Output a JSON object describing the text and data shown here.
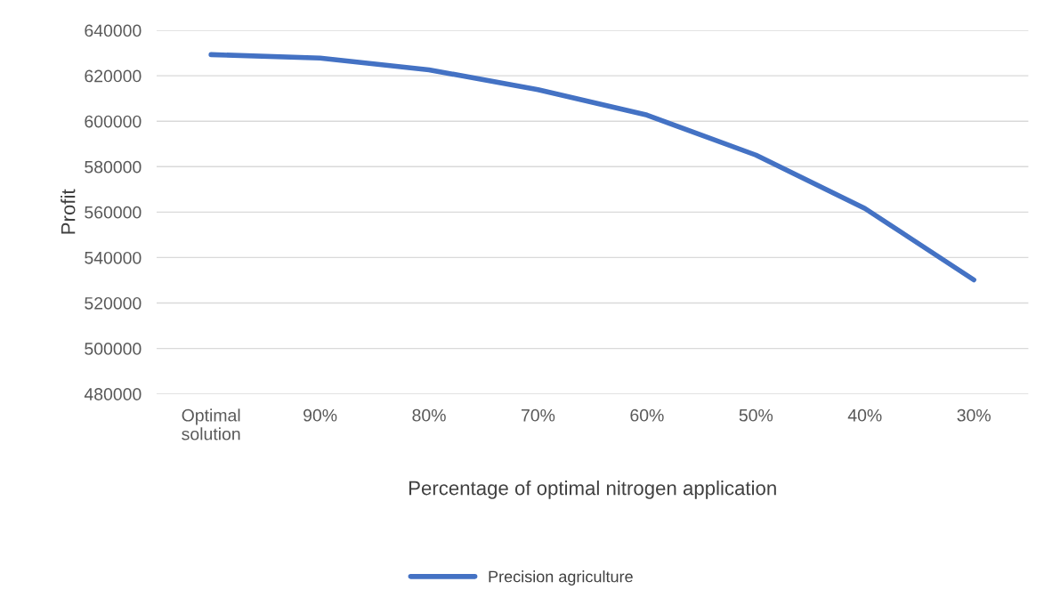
{
  "chart_data": {
    "type": "line",
    "xlabel": "Percentage of optimal nitrogen application",
    "ylabel": "Profit",
    "categories": [
      "Optimal\nsolution",
      "90%",
      "80%",
      "70%",
      "60%",
      "50%",
      "40%",
      "30%"
    ],
    "series": [
      {
        "name": "Precision agriculture",
        "color": "#4472c4",
        "values": [
          629300,
          627800,
          622600,
          613900,
          602700,
          585100,
          561600,
          530200
        ]
      }
    ],
    "ylim": [
      480000,
      640000
    ],
    "yticks": [
      480000,
      500000,
      520000,
      540000,
      560000,
      580000,
      600000,
      620000,
      640000
    ],
    "grid": "y",
    "legend": "bottom",
    "marker": "none",
    "line_style": "solid"
  }
}
